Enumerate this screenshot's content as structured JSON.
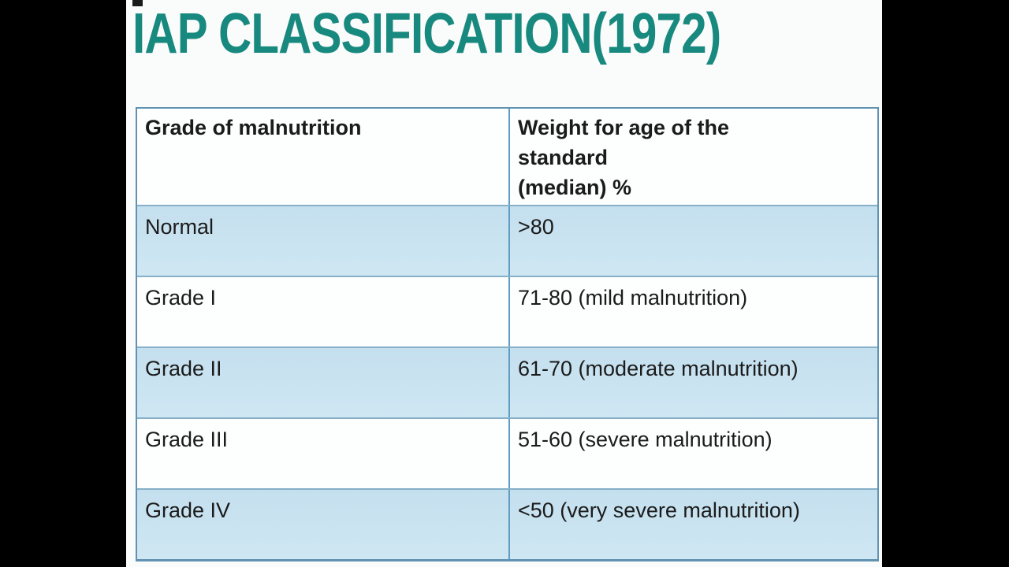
{
  "slide": {
    "title": "IAP CLASSIFICATION(1972)"
  },
  "table": {
    "col1_header": "Grade of malnutrition",
    "col2_header": "Weight for age of the\nstandard\n(median) %",
    "rows": [
      {
        "grade": "Normal",
        "weight": ">80"
      },
      {
        "grade": "Grade I",
        "weight": "71-80 (mild malnutrition)"
      },
      {
        "grade": "Grade II",
        "weight": "61-70 (moderate malnutrition)"
      },
      {
        "grade": "Grade III",
        "weight": "51-60 (severe malnutrition)"
      },
      {
        "grade": "Grade IV",
        "weight": "<50 (very severe malnutrition)"
      }
    ]
  },
  "colors": {
    "title_teal": "#18897e",
    "row_highlight_blue": "#cbe4f1",
    "table_outer_border": "#6092b1",
    "table_inner_border": "#86b0c9",
    "column_divider": "#5e9cc2",
    "letterbox": "#000000",
    "slide_background": "#fafbfb"
  }
}
